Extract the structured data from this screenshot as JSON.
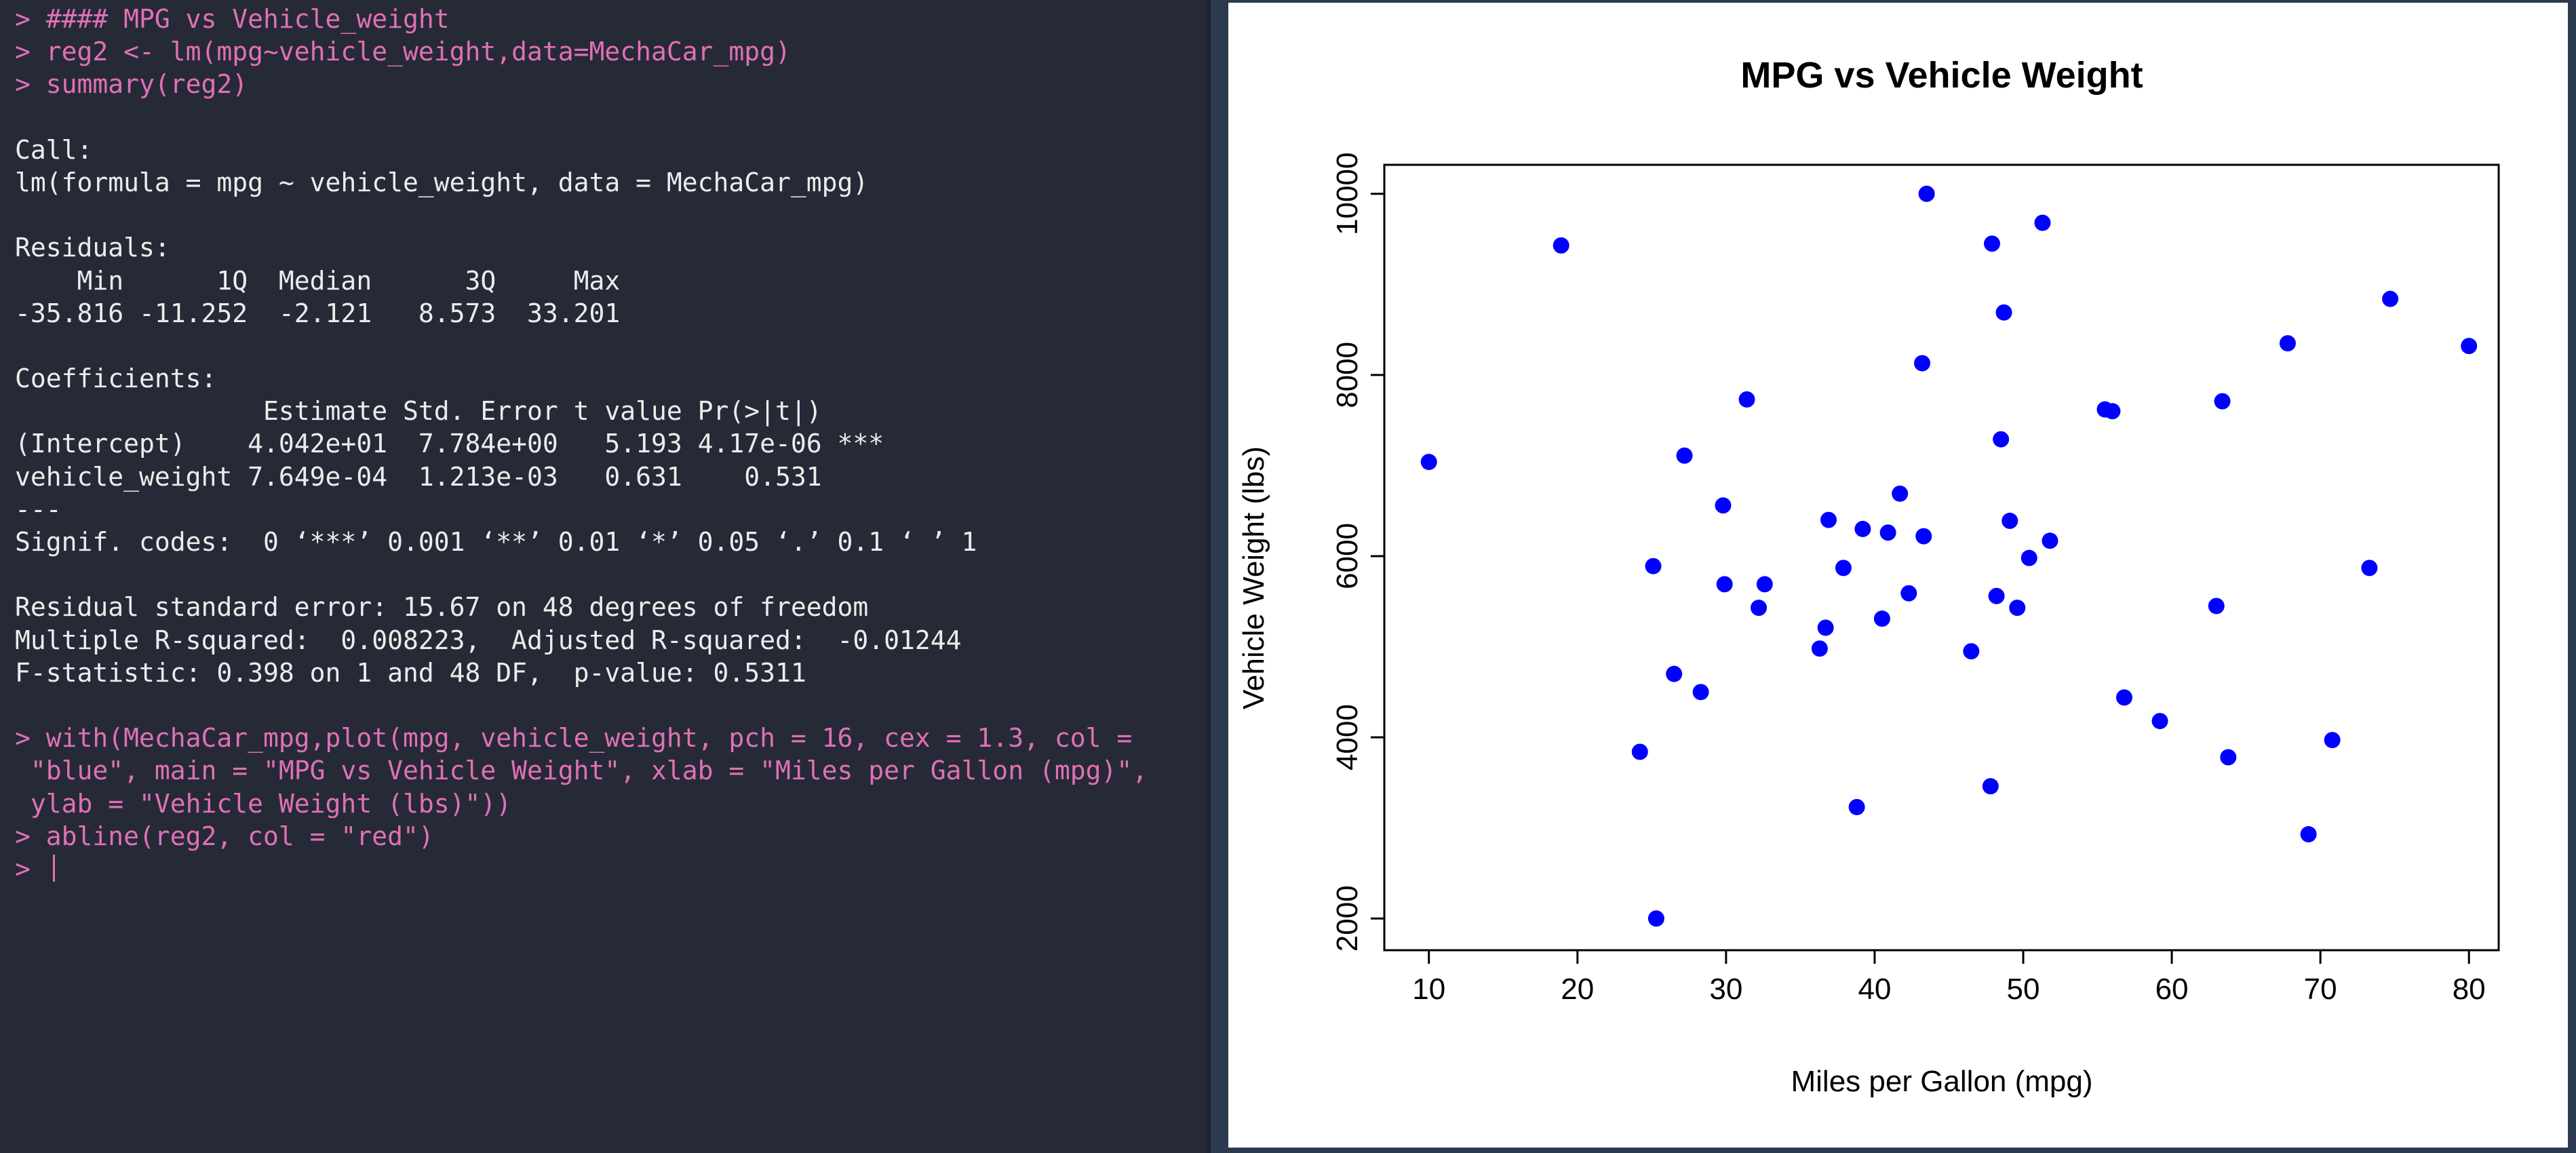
{
  "console": {
    "lines": [
      {
        "text": "> #### MPG vs Vehicle_weight",
        "kind": "cmd"
      },
      {
        "text": "> reg2 <- lm(mpg~vehicle_weight,data=MechaCar_mpg)",
        "kind": "cmd"
      },
      {
        "text": "> summary(reg2)",
        "kind": "cmd"
      },
      {
        "text": "",
        "kind": "out"
      },
      {
        "text": "Call:",
        "kind": "out"
      },
      {
        "text": "lm(formula = mpg ~ vehicle_weight, data = MechaCar_mpg)",
        "kind": "out"
      },
      {
        "text": "",
        "kind": "out"
      },
      {
        "text": "Residuals:",
        "kind": "out"
      },
      {
        "text": "    Min      1Q  Median      3Q     Max ",
        "kind": "out"
      },
      {
        "text": "-35.816 -11.252  -2.121   8.573  33.201 ",
        "kind": "out"
      },
      {
        "text": "",
        "kind": "out"
      },
      {
        "text": "Coefficients:",
        "kind": "out"
      },
      {
        "text": "                Estimate Std. Error t value Pr(>|t|)    ",
        "kind": "out"
      },
      {
        "text": "(Intercept)    4.042e+01  7.784e+00   5.193 4.17e-06 ***",
        "kind": "out"
      },
      {
        "text": "vehicle_weight 7.649e-04  1.213e-03   0.631    0.531    ",
        "kind": "out"
      },
      {
        "text": "---",
        "kind": "out"
      },
      {
        "text": "Signif. codes:  0 ‘***’ 0.001 ‘**’ 0.01 ‘*’ 0.05 ‘.’ 0.1 ‘ ’ 1",
        "kind": "out"
      },
      {
        "text": "",
        "kind": "out"
      },
      {
        "text": "Residual standard error: 15.67 on 48 degrees of freedom",
        "kind": "out"
      },
      {
        "text": "Multiple R-squared:  0.008223,  Adjusted R-squared:  -0.01244 ",
        "kind": "out"
      },
      {
        "text": "F-statistic: 0.398 on 1 and 48 DF,  p-value: 0.5311",
        "kind": "out"
      },
      {
        "text": "",
        "kind": "out"
      },
      {
        "text": "> with(MechaCar_mpg,plot(mpg, vehicle_weight, pch = 16, cex = 1.3, col =",
        "kind": "cmd"
      },
      {
        "text": " \"blue\", main = \"MPG vs Vehicle Weight\", xlab = \"Miles per Gallon (mpg)\",",
        "kind": "cmd"
      },
      {
        "text": " ylab = \"Vehicle Weight (lbs)\"))",
        "kind": "cmd"
      },
      {
        "text": "> abline(reg2, col = \"red\")",
        "kind": "cmd"
      }
    ],
    "prompt": "> "
  },
  "colors": {
    "console_bg": "#262a36",
    "command_text": "#e070b8",
    "output_text": "#ececec",
    "point_color": "#0000ff"
  },
  "chart_data": {
    "type": "scatter",
    "title": "MPG vs Vehicle Weight",
    "xlabel": "Miles per Gallon (mpg)",
    "ylabel": "Vehicle Weight (lbs)",
    "xlim": [
      7,
      82
    ],
    "ylim": [
      1650,
      10320
    ],
    "xticks": [
      10,
      20,
      30,
      40,
      50,
      60,
      70,
      80
    ],
    "yticks": [
      2000,
      4000,
      6000,
      8000,
      10000
    ],
    "grid": false,
    "legend": "none",
    "series": [
      {
        "points": [
          [
            10.0,
            7040
          ],
          [
            18.9,
            9430
          ],
          [
            24.2,
            3840
          ],
          [
            25.1,
            5890
          ],
          [
            25.3,
            2000
          ],
          [
            26.5,
            4700
          ],
          [
            27.2,
            7110
          ],
          [
            28.3,
            4500
          ],
          [
            29.8,
            6560
          ],
          [
            29.9,
            5690
          ],
          [
            31.4,
            7730
          ],
          [
            32.2,
            5430
          ],
          [
            32.6,
            5690
          ],
          [
            36.3,
            4980
          ],
          [
            36.7,
            5210
          ],
          [
            36.9,
            6400
          ],
          [
            37.9,
            5870
          ],
          [
            38.8,
            3230
          ],
          [
            39.2,
            6300
          ],
          [
            40.5,
            5310
          ],
          [
            40.9,
            6260
          ],
          [
            41.7,
            6690
          ],
          [
            42.3,
            5590
          ],
          [
            43.2,
            8130
          ],
          [
            43.3,
            6220
          ],
          [
            43.5,
            10000
          ],
          [
            46.5,
            4950
          ],
          [
            47.8,
            3460
          ],
          [
            47.9,
            9450
          ],
          [
            48.2,
            5560
          ],
          [
            48.5,
            7290
          ],
          [
            48.7,
            8690
          ],
          [
            49.1,
            6390
          ],
          [
            49.6,
            5430
          ],
          [
            50.4,
            5980
          ],
          [
            51.3,
            9680
          ],
          [
            51.8,
            6170
          ],
          [
            55.5,
            7620
          ],
          [
            56.0,
            7600
          ],
          [
            56.8,
            4440
          ],
          [
            59.2,
            4180
          ],
          [
            63.0,
            5450
          ],
          [
            63.4,
            7710
          ],
          [
            63.8,
            3780
          ],
          [
            67.8,
            8350
          ],
          [
            69.2,
            2930
          ],
          [
            70.8,
            3970
          ],
          [
            73.3,
            5870
          ],
          [
            74.7,
            8840
          ],
          [
            80.0,
            8320
          ]
        ]
      }
    ]
  }
}
